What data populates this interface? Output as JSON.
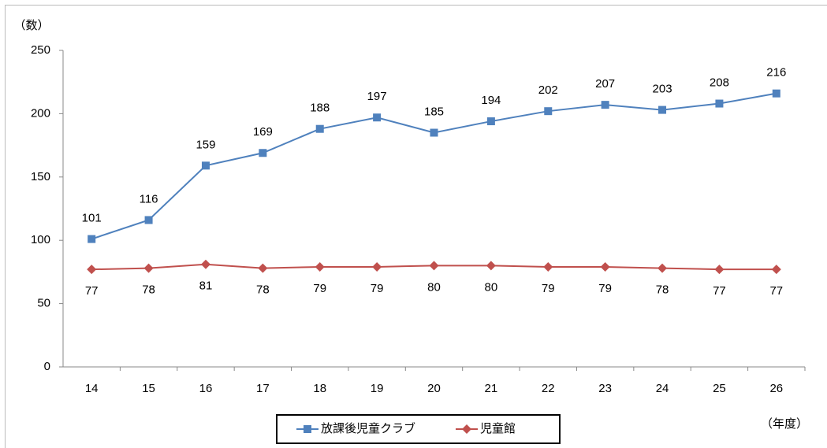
{
  "chart_data": {
    "type": "line",
    "y_label": "（数）",
    "x_label": "（年度）",
    "categories": [
      "14",
      "15",
      "16",
      "17",
      "18",
      "19",
      "20",
      "21",
      "22",
      "23",
      "24",
      "25",
      "26"
    ],
    "series": [
      {
        "name": "放課後児童クラブ",
        "color": "#4f81bd",
        "marker": "square",
        "values": [
          101,
          116,
          159,
          169,
          188,
          197,
          185,
          194,
          202,
          207,
          203,
          208,
          216
        ]
      },
      {
        "name": "児童館",
        "color": "#c0504d",
        "marker": "diamond",
        "values": [
          77,
          78,
          81,
          78,
          79,
          79,
          80,
          80,
          79,
          79,
          78,
          77,
          77
        ]
      }
    ],
    "ylim": [
      0,
      250
    ],
    "yticks": [
      0,
      50,
      100,
      150,
      200,
      250
    ],
    "grid": false,
    "legend": "bottom"
  }
}
